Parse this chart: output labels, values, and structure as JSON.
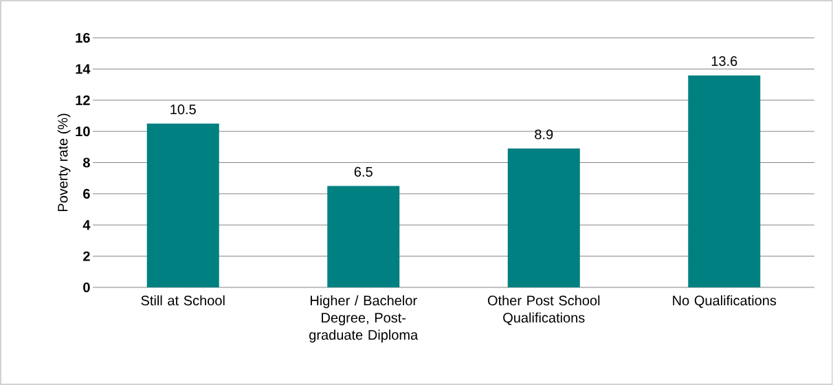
{
  "chart_data": {
    "type": "bar",
    "ylabel": "Poverty rate (%)",
    "categories": [
      "Still at School",
      "Higher / Bachelor Degree, Post-graduate Diploma",
      "Other Post School Qualifications",
      "No Qualifications"
    ],
    "values": [
      10.5,
      6.5,
      8.9,
      13.6
    ],
    "color": "#008080",
    "ylim": [
      0,
      16
    ],
    "yticks": [
      0,
      2,
      4,
      6,
      8,
      10,
      12,
      14,
      16
    ],
    "grid": "y",
    "data_labels": true
  }
}
